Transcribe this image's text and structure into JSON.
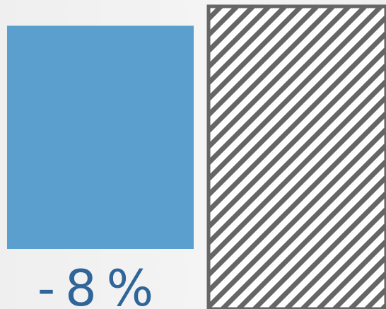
{
  "chart_data": {
    "type": "bar",
    "categories": [
      "",
      ""
    ],
    "values": [
      92,
      100
    ],
    "ylim": [
      0,
      100
    ],
    "grid": false,
    "legend": "none",
    "annotation": "-8%",
    "colors": {
      "current": "#5b9fce",
      "reference_stroke": "#666666",
      "reference_fill": "#ffffff",
      "label": "#2f6598"
    }
  }
}
